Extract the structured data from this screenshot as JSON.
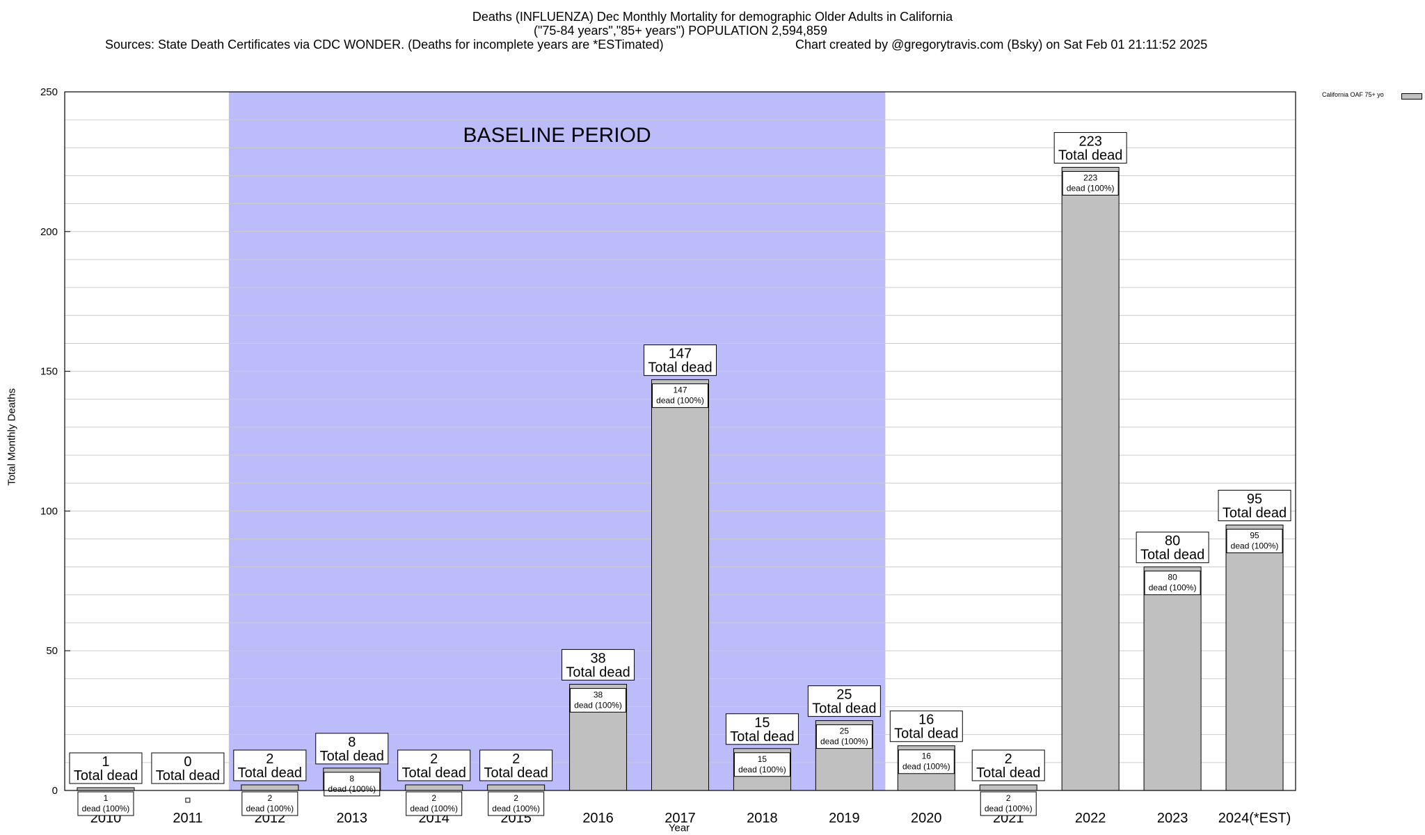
{
  "chart_data": {
    "type": "bar",
    "title_lines": [
      "Deaths (INFLUENZA) Dec Monthly Mortality for demographic Older Adults in California",
      "(\"75-84 years\",\"85+ years\") POPULATION 2,594,859",
      "Sources: State Death Certificates via CDC WONDER. (Deaths for incomplete years are *ESTimated)",
      "Chart created by @gregorytravis.com (Bsky) on Sat Feb 01 21:11:52 2025"
    ],
    "xlabel": "Year",
    "ylabel": "Total Monthly Deaths",
    "ylim": [
      0,
      250
    ],
    "yticks": [
      0,
      50,
      100,
      150,
      200,
      250
    ],
    "grid": true,
    "categories": [
      "2010",
      "2011",
      "2012",
      "2013",
      "2014",
      "2015",
      "2016",
      "2017",
      "2018",
      "2019",
      "2020",
      "2021",
      "2022",
      "2023",
      "2024(*EST)"
    ],
    "series": [
      {
        "name": "California OAF 75+ yo",
        "values": [
          1,
          0,
          2,
          8,
          2,
          2,
          38,
          147,
          15,
          25,
          16,
          2,
          223,
          80,
          95
        ]
      }
    ],
    "bar_color": "#c0c0c0",
    "baseline_region": {
      "label": "BASELINE PERIOD",
      "from": "2012",
      "to": "2019",
      "color": "#bcbcfa"
    },
    "total_label_suffix": "Total dead",
    "inner_label_suffix": "dead (100%)",
    "legend_placement": "top-right"
  }
}
